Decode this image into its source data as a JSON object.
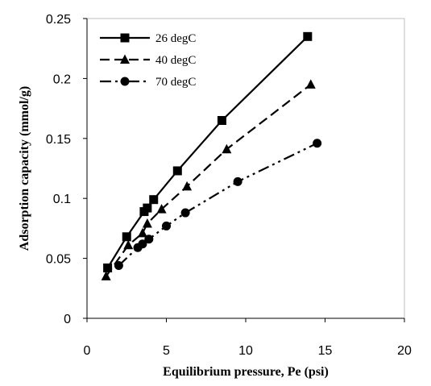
{
  "chart_data": {
    "type": "line",
    "xlabel": "Equilibrium pressure, Pe (psi)",
    "ylabel": "Adsorption capacity (mmol/g)",
    "xlim": [
      0,
      20
    ],
    "ylim": [
      0,
      0.25
    ],
    "x_ticks": [
      "0",
      "5",
      "10",
      "15",
      "20"
    ],
    "y_ticks": [
      "0",
      "0.05",
      "0.1",
      "0.15",
      "0.2",
      "0.25"
    ],
    "grid": false,
    "legend_position": "top-left",
    "series": [
      {
        "name": "26 degC",
        "marker": "square",
        "line_style": "solid",
        "color": "#000000",
        "x": [
          1.3,
          2.5,
          3.6,
          3.8,
          4.2,
          5.7,
          8.5,
          13.9
        ],
        "y": [
          0.042,
          0.068,
          0.089,
          0.092,
          0.099,
          0.123,
          0.165,
          0.235
        ]
      },
      {
        "name": "40 degC",
        "marker": "triangle",
        "line_style": "dashed",
        "color": "#000000",
        "x": [
          1.2,
          2.6,
          3.5,
          3.8,
          4.7,
          6.3,
          8.8,
          14.1
        ],
        "y": [
          0.035,
          0.061,
          0.071,
          0.079,
          0.091,
          0.11,
          0.141,
          0.195
        ]
      },
      {
        "name": "70 degC",
        "marker": "circle",
        "line_style": "dashdotdot",
        "color": "#000000",
        "x": [
          2.0,
          3.2,
          3.5,
          3.9,
          5.0,
          6.2,
          9.5,
          14.5
        ],
        "y": [
          0.044,
          0.059,
          0.062,
          0.066,
          0.077,
          0.088,
          0.114,
          0.146
        ]
      }
    ]
  }
}
